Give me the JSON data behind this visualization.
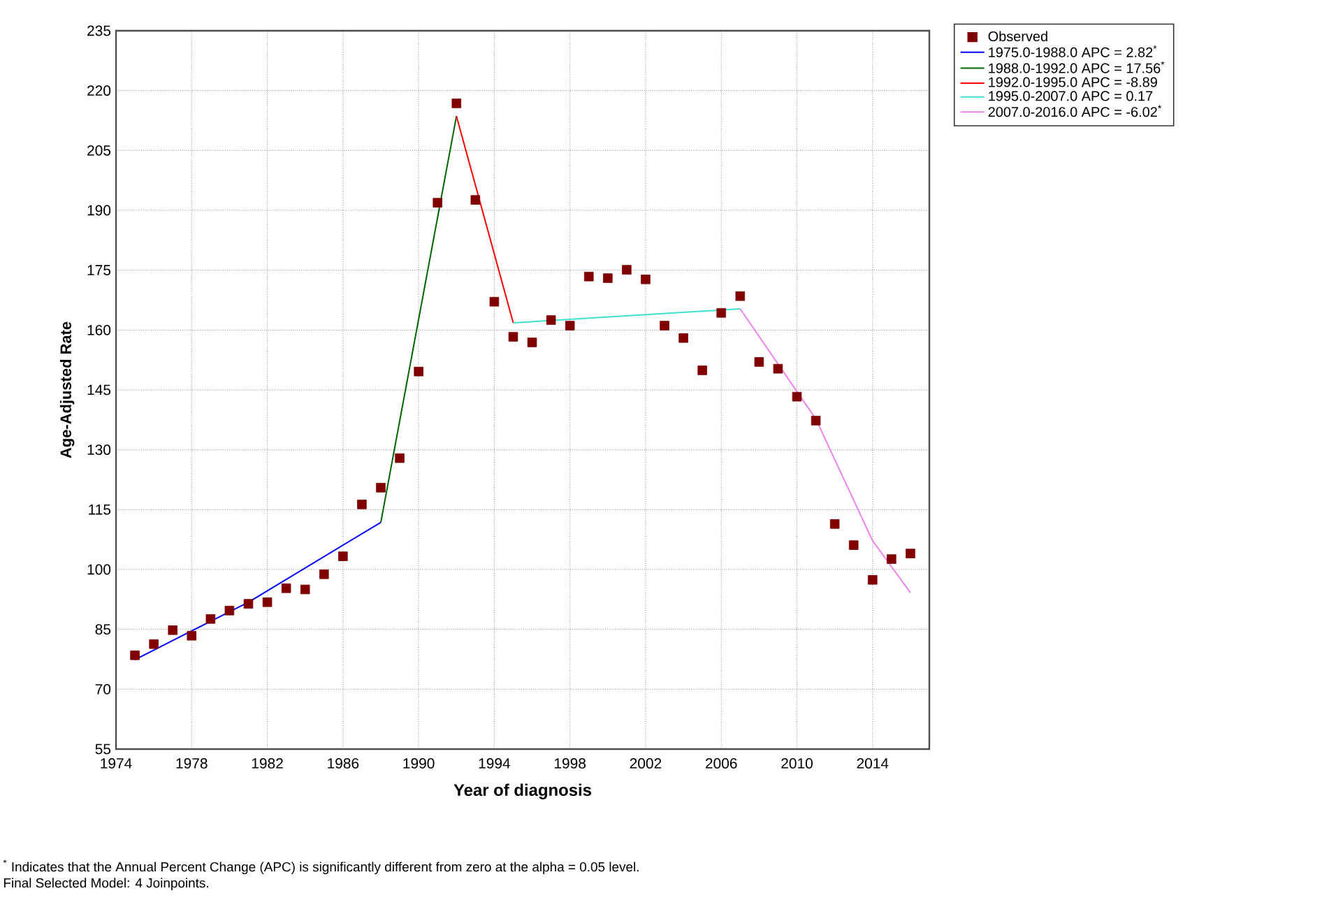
{
  "chart_data": {
    "type": "line",
    "xlabel": "Year of diagnosis",
    "ylabel": "Age-Adjusted Rate",
    "xlim": [
      1974,
      2017
    ],
    "xticks": [
      1974,
      1978,
      1982,
      1986,
      1990,
      1994,
      1998,
      2002,
      2006,
      2010,
      2014
    ],
    "ylim": [
      55,
      235
    ],
    "yticks": [
      55,
      70,
      85,
      100,
      115,
      130,
      145,
      160,
      175,
      190,
      205,
      220,
      235
    ],
    "grid": true,
    "legend": "top right",
    "series": [
      {
        "name": "Observed",
        "type": "scatter",
        "marker": "square",
        "color": "#800000",
        "x": [
          1975,
          1976,
          1977,
          1978,
          1979,
          1980,
          1981,
          1982,
          1983,
          1984,
          1985,
          1986,
          1987,
          1988,
          1989,
          1990,
          1991,
          1992,
          1993,
          1994,
          1995,
          1996,
          1997,
          1998,
          1999,
          2000,
          2001,
          2002,
          2003,
          2004,
          2005,
          2006,
          2007,
          2008,
          2009,
          2010,
          2011,
          2012,
          2013,
          2014,
          2015,
          2016
        ],
        "values": [
          78.5,
          81.3,
          84.8,
          83.4,
          87.6,
          89.7,
          91.4,
          91.8,
          95.3,
          95.0,
          98.8,
          103.3,
          116.3,
          120.5,
          127.9,
          149.6,
          191.9,
          216.8,
          192.6,
          167.1,
          158.3,
          156.9,
          162.5,
          161.1,
          173.4,
          173.0,
          175.1,
          172.7,
          161.1,
          158.0,
          149.9,
          164.3,
          168.5,
          152.0,
          150.3,
          143.3,
          137.3,
          111.4,
          106.1,
          97.4,
          102.6,
          104.0
        ]
      },
      {
        "name": "1975.0-1988.0 APC  =  2.82$^{*}$",
        "marker": "none",
        "color": "#0000ff",
        "x": [
          1975,
          1981,
          1988
        ],
        "values": [
          77.4,
          91.8,
          111.8
        ]
      },
      {
        "name": "1988.0-1992.0 APC  = 17.56$^{*}$",
        "marker": "none",
        "color": "#006400",
        "x": [
          1988,
          1992
        ],
        "values": [
          111.8,
          213.6
        ]
      },
      {
        "name": "1992.0-1995.0 APC  = -8.89",
        "marker": "none",
        "color": "#ff0000",
        "x": [
          1992,
          1995
        ],
        "values": [
          213.6,
          161.8
        ]
      },
      {
        "name": "1995.0-2007.0 APC  =  0.17",
        "marker": "none",
        "color": "#40e0d0",
        "x": [
          1995,
          2007
        ],
        "values": [
          161.8,
          165.3
        ]
      },
      {
        "name": "2007.0-2016.0 APC  = -6.02$^{*}$",
        "marker": "none",
        "color": "#ee82ee",
        "x": [
          2007,
          2011,
          2014,
          2016
        ],
        "values": [
          165.3,
          137.7,
          107.2,
          94.2
        ]
      }
    ],
    "annotations": [
      "$^{*}$ Indicates that the Annual Percent Change (APC) is significantly different from zero at the alpha = 0.05 level.",
      "Final Selected Model: 4 Joinpoints."
    ]
  }
}
